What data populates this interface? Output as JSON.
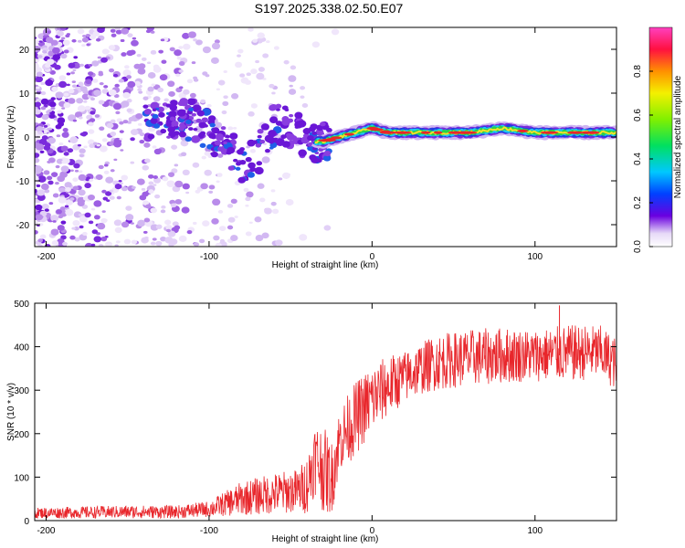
{
  "title": "S197.2025.338.02.50.E07",
  "colors": {
    "snr_line": "#e8262b",
    "axis": "#000000",
    "spec_dots": "#8a2be2",
    "spec_core": "#2ad14a"
  },
  "chart_data": [
    {
      "type": "heatmap",
      "name": "spectrogram",
      "xlabel": "Height of straight line (km)",
      "ylabel": "Frequency (Hz)",
      "xlim": [
        -207,
        150
      ],
      "ylim": [
        -25,
        25
      ],
      "xticks": [
        -200,
        -100,
        0,
        100
      ],
      "xtick_labels": [
        "-200",
        "-100",
        "0",
        "100"
      ],
      "yticks": [
        20,
        10,
        0,
        -10,
        -20
      ],
      "ytick_labels": [
        "20",
        "10",
        "0",
        "-10",
        "-20"
      ],
      "colorbar": {
        "label": "Normalized spectral amplitude",
        "range": [
          0,
          1
        ],
        "ticks": [
          0.0,
          0.2,
          0.4,
          0.6,
          0.8
        ],
        "tick_labels": [
          "0.0",
          "0.2",
          "0.4",
          "0.6",
          "0.8"
        ]
      },
      "ridge": {
        "x": [
          -140,
          -120,
          -110,
          -100,
          -90,
          -80,
          -70,
          -60,
          -50,
          -40,
          -30,
          -20,
          -10,
          0,
          10,
          20,
          40,
          60,
          80,
          100,
          120,
          150
        ],
        "y": [
          3,
          4,
          4,
          1,
          -2,
          -6,
          -4,
          3,
          2,
          -1,
          -1,
          0,
          1,
          2,
          1,
          1,
          1,
          1,
          2,
          1,
          1,
          1
        ]
      }
    },
    {
      "type": "line",
      "name": "snr",
      "xlabel": "Height of straight line (km)",
      "ylabel": "SNR (10 * v/v)",
      "xlim": [
        -207,
        150
      ],
      "ylim": [
        0,
        500
      ],
      "xticks": [
        -200,
        -100,
        0,
        100
      ],
      "xtick_labels": [
        "-200",
        "-100",
        "0",
        "100"
      ],
      "yticks": [
        500,
        400,
        300,
        200,
        100,
        0
      ],
      "ytick_labels": [
        "500",
        "400",
        "300",
        "200",
        "100",
        "0"
      ],
      "envelope": {
        "x": [
          -207,
          -150,
          -120,
          -100,
          -80,
          -60,
          -45,
          -40,
          -35,
          -30,
          -25,
          -20,
          -10,
          0,
          10,
          20,
          30,
          40,
          60,
          80,
          100,
          120,
          140,
          150
        ],
        "low": [
          5,
          5,
          5,
          8,
          12,
          15,
          18,
          15,
          60,
          20,
          10,
          110,
          150,
          200,
          240,
          270,
          290,
          300,
          310,
          315,
          320,
          320,
          325,
          300
        ],
        "high": [
          30,
          35,
          35,
          45,
          90,
          110,
          120,
          150,
          230,
          220,
          180,
          260,
          320,
          360,
          380,
          390,
          410,
          430,
          440,
          445,
          440,
          450,
          450,
          420
        ]
      },
      "peak": {
        "x": 115,
        "y": 495
      }
    }
  ]
}
